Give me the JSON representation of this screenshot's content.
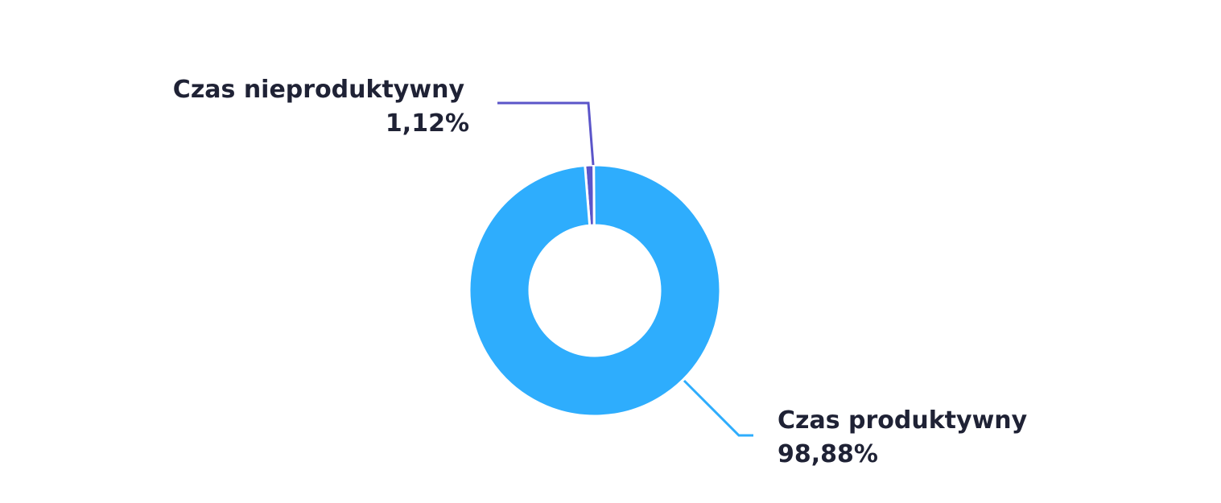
{
  "chart_data": {
    "type": "pie",
    "variant": "donut",
    "slices": [
      {
        "label": "Czas nieproduktywny",
        "value": 1.12,
        "value_label": "1,12%",
        "color": "#5b55c9"
      },
      {
        "label": "Czas produktywny",
        "value": 98.88,
        "value_label": "98,88%",
        "color": "#2eadfd"
      }
    ],
    "legend": "none",
    "labels": "outside-with-leader-lines"
  }
}
